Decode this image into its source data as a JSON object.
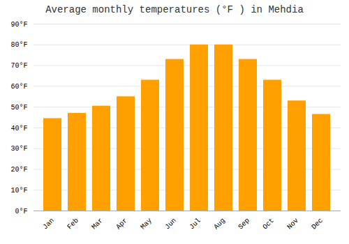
{
  "chart_data": {
    "type": "bar",
    "title": "Average monthly temperatures (°F ) in Mehdia",
    "categories": [
      "Jan",
      "Feb",
      "Mar",
      "Apr",
      "May",
      "Jun",
      "Jul",
      "Aug",
      "Sep",
      "Oct",
      "Nov",
      "Dec"
    ],
    "values": [
      44.5,
      47.0,
      50.5,
      55.0,
      63.0,
      73.0,
      80.0,
      80.0,
      73.0,
      63.0,
      53.0,
      46.5
    ],
    "color": "#FFA000",
    "ylim": [
      0,
      90
    ],
    "yticks": [
      {
        "value": 0,
        "label": "0°F"
      },
      {
        "value": 10,
        "label": "10°F"
      },
      {
        "value": 20,
        "label": "20°F"
      },
      {
        "value": 30,
        "label": "30°F"
      },
      {
        "value": 40,
        "label": "40°F"
      },
      {
        "value": 50,
        "label": "50°F"
      },
      {
        "value": 60,
        "label": "60°F"
      },
      {
        "value": 70,
        "label": "70°F"
      },
      {
        "value": 80,
        "label": "80°F"
      },
      {
        "value": 90,
        "label": "90°F"
      }
    ],
    "grid": true
  }
}
